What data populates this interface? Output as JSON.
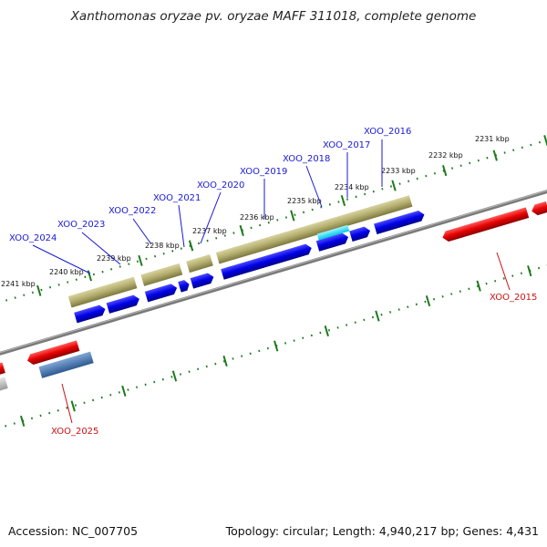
{
  "title": "Xanthomonas oryzae pv. oryzae MAFF 311018, complete genome",
  "footer": {
    "accession": "Accession: NC_007705",
    "topology": "Topology: circular; Length: 4,940,217 bp; Genes: 4,431"
  },
  "kbp_labels": [
    "2231 kbp",
    "2232 kbp",
    "2233 kbp",
    "2234 kbp",
    "2235 kbp",
    "2236 kbp",
    "2237 kbp",
    "2238 kbp",
    "2239 kbp",
    "2240 kbp",
    "2241 kbp"
  ],
  "gene_labels_top": [
    "XOO_2016",
    "XOO_2017",
    "XOO_2018",
    "XOO_2019",
    "XOO_2020",
    "XOO_2021",
    "XOO_2022",
    "XOO_2023",
    "XOO_2024"
  ],
  "gene_labels_bottom": [
    "XOO_2015",
    "XOO_2025"
  ],
  "colors": {
    "forward_gene": "#0000e6",
    "reverse_gene": "#e60000",
    "operon": "#b3ad6e",
    "highlight": "#00e5ff",
    "ruler": "#1e7a1e",
    "backbone": "#777777",
    "steelblue_gene": "#4a78b0",
    "gray_gene": "#c8c8c8"
  }
}
